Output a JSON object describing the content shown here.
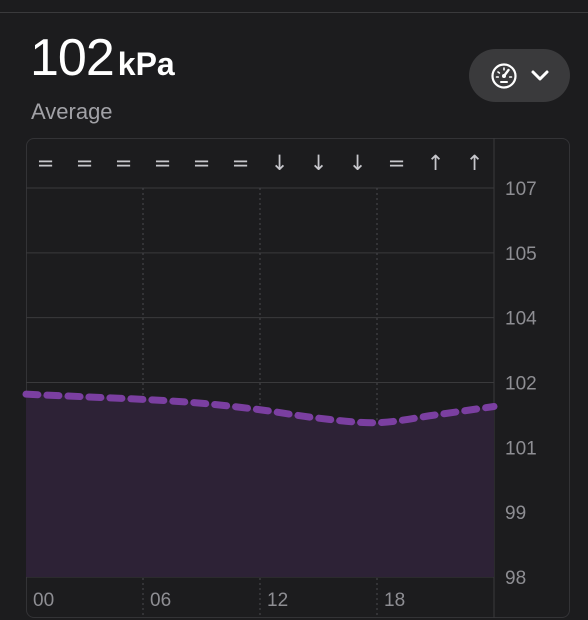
{
  "reading": {
    "value": "102",
    "unit": "kPa",
    "caption": "Average"
  },
  "view_menu": {
    "icon": "gauge-icon",
    "chevron": "chevron-down-icon"
  },
  "colors": {
    "background": "#1c1c1e",
    "line": "#7b3fa1",
    "area_fill": "#2d2236",
    "grid": "#3a3a3c"
  },
  "chart_data": {
    "type": "area",
    "trend_symbols": [
      "=",
      "=",
      "=",
      "=",
      "=",
      "=",
      "↓",
      "↓",
      "↓",
      "=",
      "↑",
      "↑"
    ],
    "x_tick_labels": [
      "00",
      "06",
      "12",
      "18"
    ],
    "y_tick_labels": [
      "107",
      "105",
      "104",
      "102",
      "101",
      "99",
      "98"
    ],
    "y_tick_values": [
      107,
      105,
      104,
      102,
      101,
      99,
      98
    ],
    "xlim": [
      0,
      24
    ],
    "x_hours": [
      0,
      3,
      6,
      9,
      12,
      15,
      18,
      21,
      24
    ],
    "values": [
      101.82,
      101.78,
      101.74,
      101.68,
      101.58,
      101.45,
      101.38,
      101.5,
      101.63
    ],
    "line_style": "dashed",
    "grid": true
  }
}
